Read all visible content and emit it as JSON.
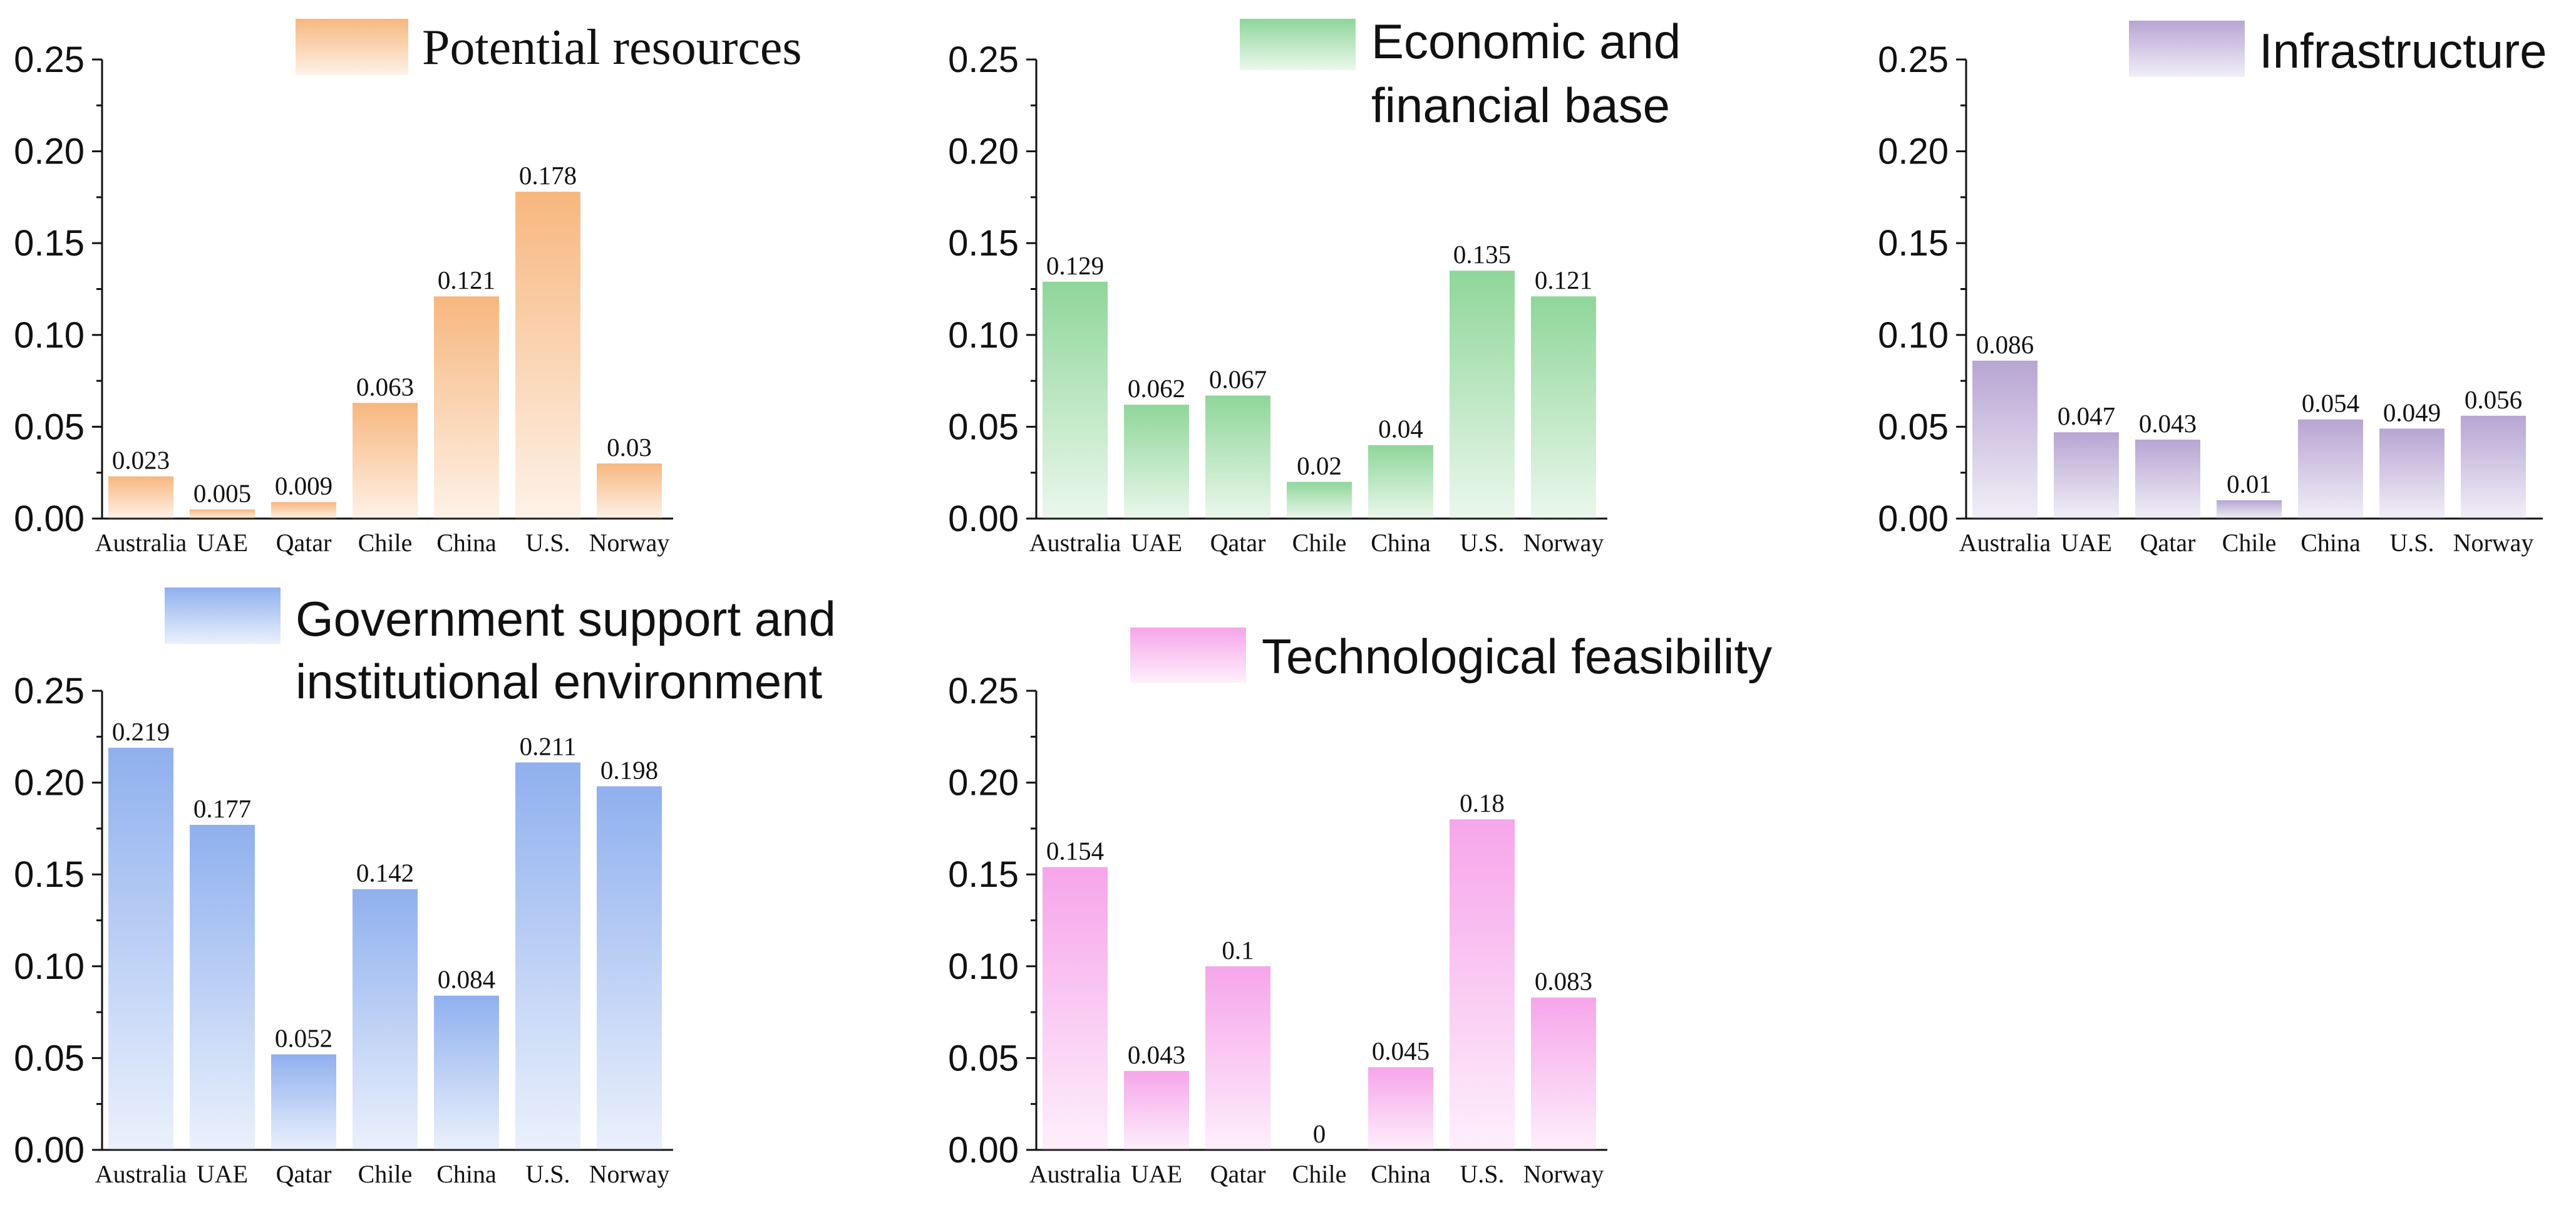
{
  "chart_data": [
    {
      "type": "bar",
      "title": "Potential resources",
      "categories": [
        "Australia",
        "UAE",
        "Qatar",
        "Chile",
        "China",
        "U.S.",
        "Norway"
      ],
      "values": [
        0.023,
        0.005,
        0.009,
        0.063,
        0.121,
        0.178,
        0.03
      ],
      "value_labels": [
        "0.023",
        "0.005",
        "0.009",
        "0.063",
        "0.121",
        "0.178",
        "0.03"
      ],
      "ylim": [
        0,
        0.25
      ],
      "yticks": [
        "0.00",
        "0.05",
        "0.10",
        "0.15",
        "0.20",
        "0.25"
      ],
      "color": "#f7b77f",
      "xlabel": "",
      "ylabel": ""
    },
    {
      "type": "bar",
      "title": "Economic and financial base",
      "categories": [
        "Australia",
        "UAE",
        "Qatar",
        "Chile",
        "China",
        "U.S.",
        "Norway"
      ],
      "values": [
        0.129,
        0.062,
        0.067,
        0.02,
        0.04,
        0.135,
        0.121
      ],
      "value_labels": [
        "0.129",
        "0.062",
        "0.067",
        "0.02",
        "0.04",
        "0.135",
        "0.121"
      ],
      "ylim": [
        0,
        0.25
      ],
      "yticks": [
        "0.00",
        "0.05",
        "0.10",
        "0.15",
        "0.20",
        "0.25"
      ],
      "color": "#8fd699",
      "xlabel": "",
      "ylabel": ""
    },
    {
      "type": "bar",
      "title": "Infrastructure",
      "categories": [
        "Australia",
        "UAE",
        "Qatar",
        "Chile",
        "China",
        "U.S.",
        "Norway"
      ],
      "values": [
        0.086,
        0.047,
        0.043,
        0.01,
        0.054,
        0.049,
        0.056
      ],
      "value_labels": [
        "0.086",
        "0.047",
        "0.043",
        "0.01",
        "0.054",
        "0.049",
        "0.056"
      ],
      "ylim": [
        0,
        0.25
      ],
      "yticks": [
        "0.00",
        "0.05",
        "0.10",
        "0.15",
        "0.20",
        "0.25"
      ],
      "color": "#b7a5d3",
      "xlabel": "",
      "ylabel": ""
    },
    {
      "type": "bar",
      "title": "Government support and institutional environment",
      "categories": [
        "Australia",
        "UAE",
        "Qatar",
        "Chile",
        "China",
        "U.S.",
        "Norway"
      ],
      "values": [
        0.219,
        0.177,
        0.052,
        0.142,
        0.084,
        0.211,
        0.198
      ],
      "value_labels": [
        "0.219",
        "0.177",
        "0.052",
        "0.142",
        "0.084",
        "0.211",
        "0.198"
      ],
      "ylim": [
        0,
        0.25
      ],
      "yticks": [
        "0.00",
        "0.05",
        "0.10",
        "0.15",
        "0.20",
        "0.25"
      ],
      "color": "#8fb0ee",
      "xlabel": "",
      "ylabel": ""
    },
    {
      "type": "bar",
      "title": "Technological feasibility",
      "categories": [
        "Australia",
        "UAE",
        "Qatar",
        "Chile",
        "China",
        "U.S.",
        "Norway"
      ],
      "values": [
        0.154,
        0.043,
        0.1,
        0,
        0.045,
        0.18,
        0.083
      ],
      "value_labels": [
        "0.154",
        "0.043",
        "0.1",
        "0",
        "0.045",
        "0.18",
        "0.083"
      ],
      "ylim": [
        0,
        0.25
      ],
      "yticks": [
        "0.00",
        "0.05",
        "0.10",
        "0.15",
        "0.20",
        "0.25"
      ],
      "color": "#f6a5ea",
      "xlabel": "",
      "ylabel": ""
    }
  ]
}
